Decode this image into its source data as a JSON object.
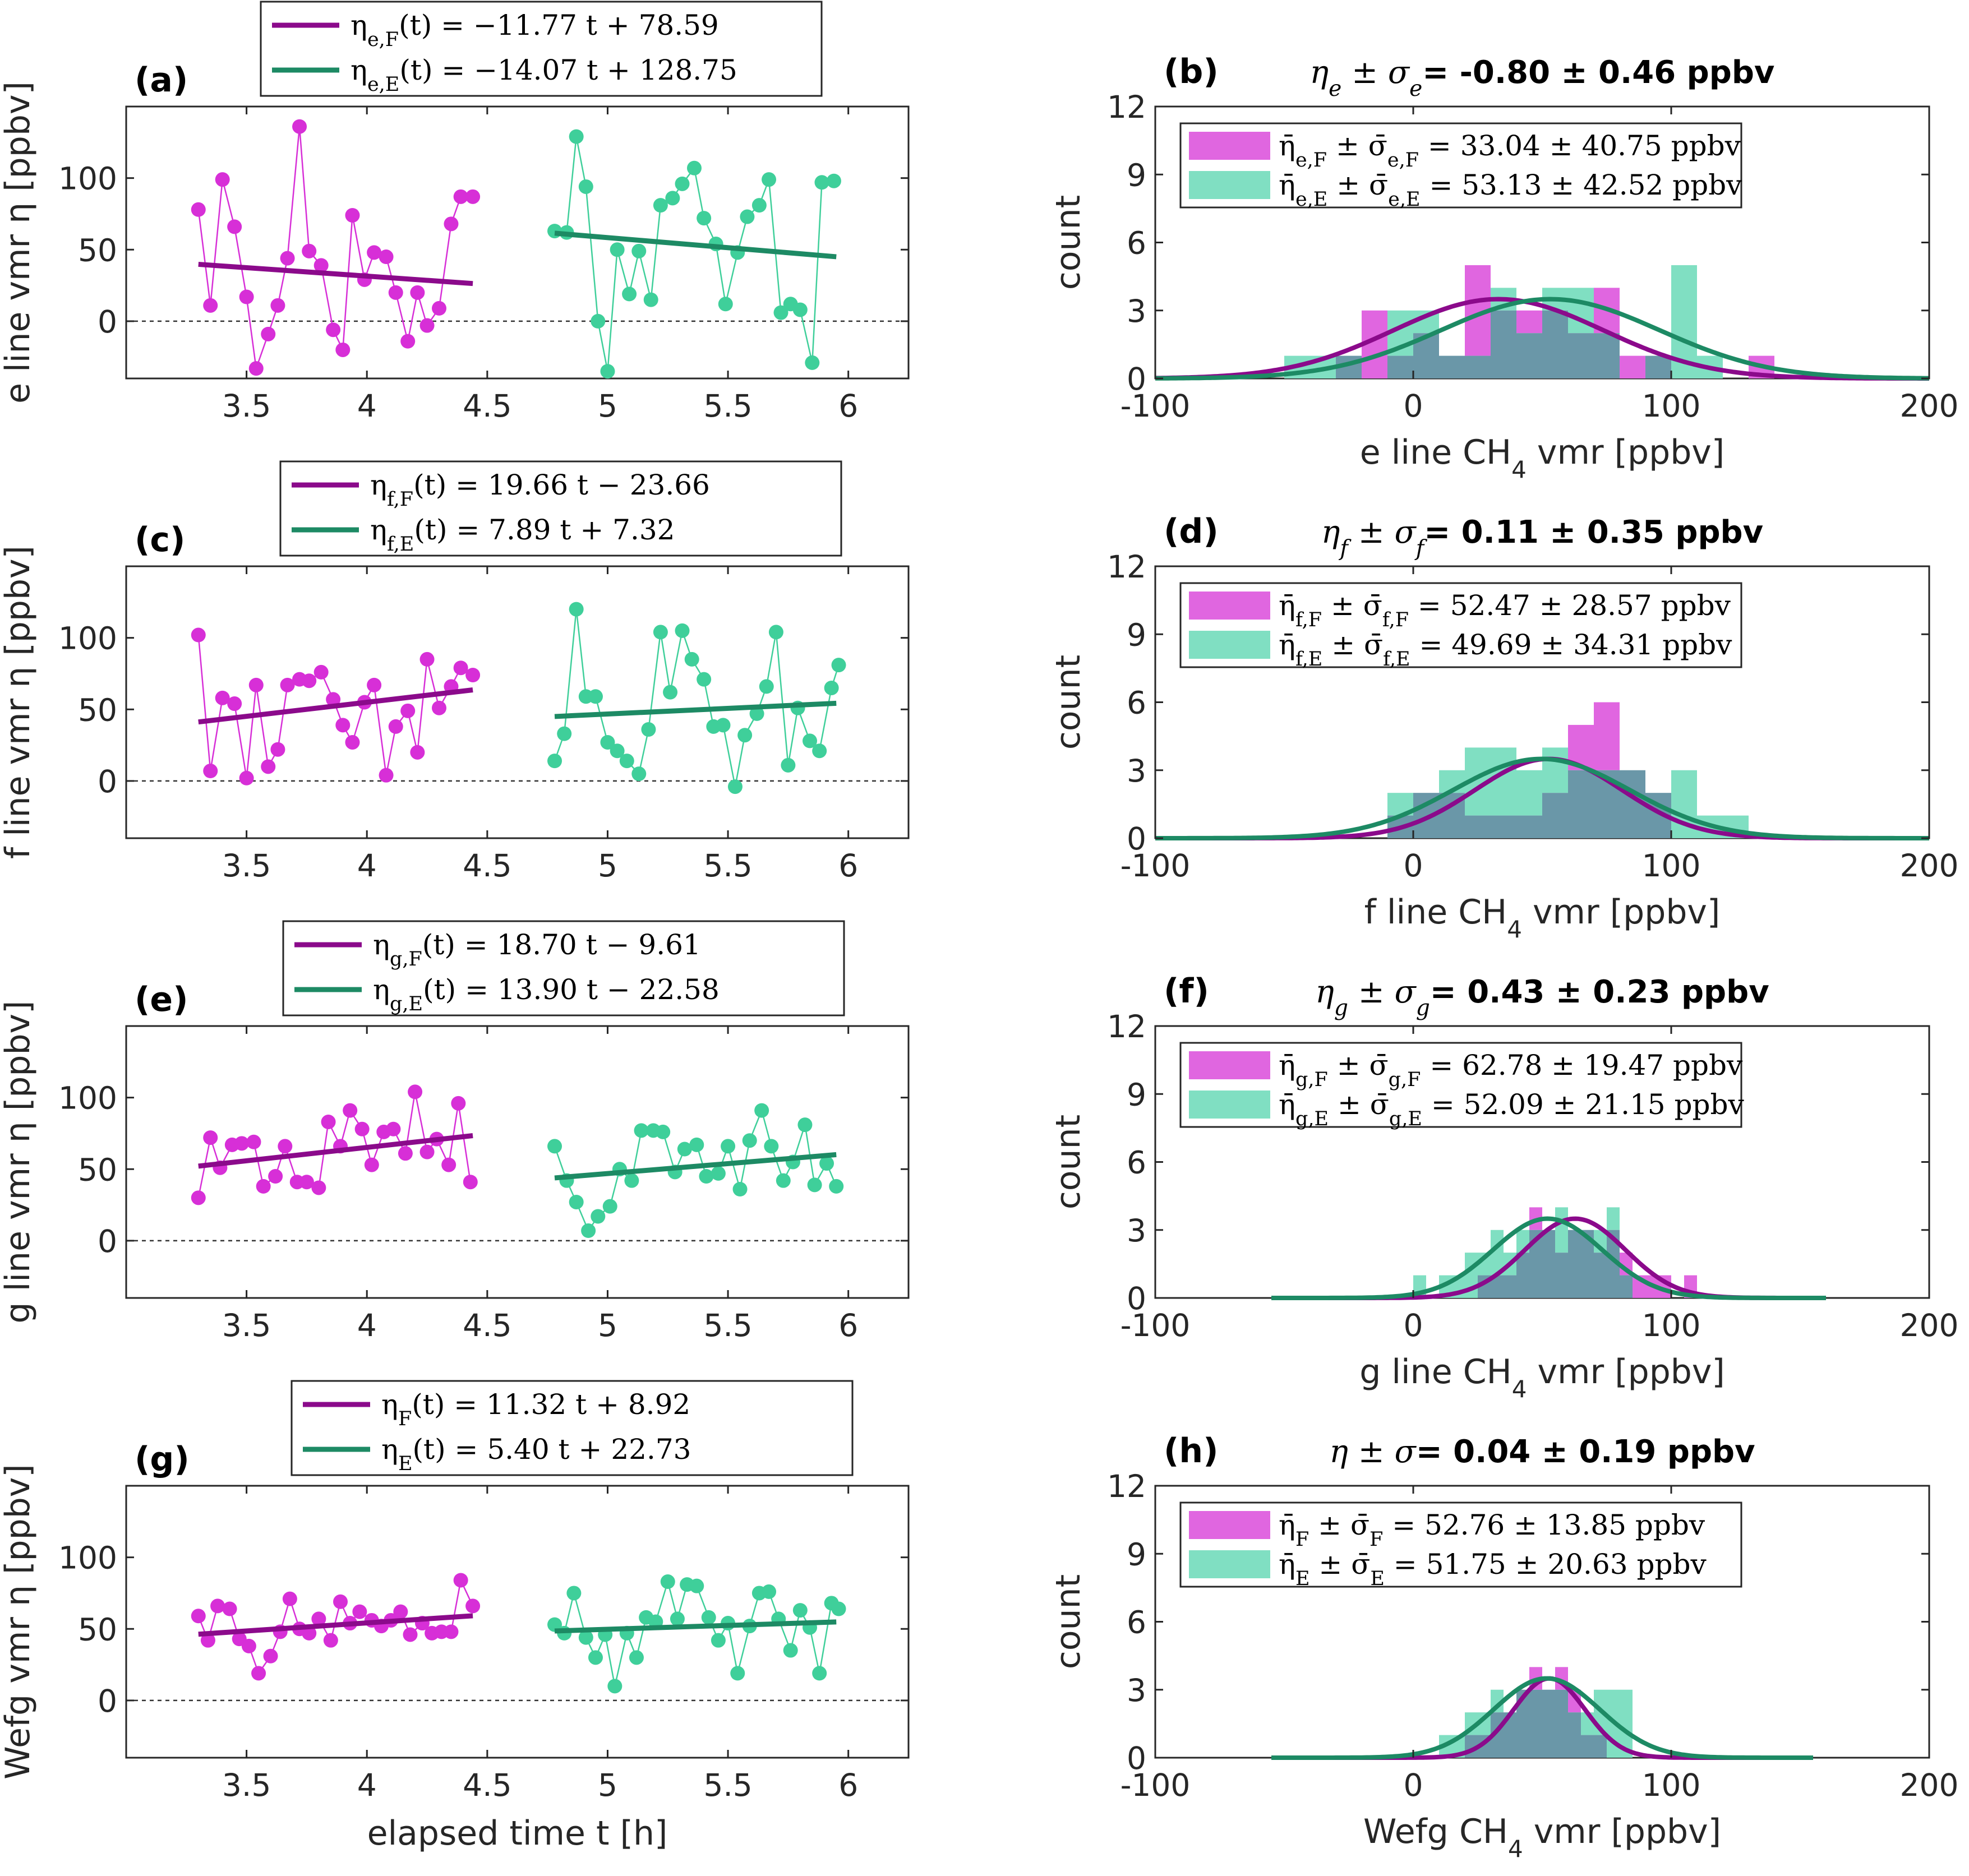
{
  "colors": {
    "flight_points": "#d72fd7",
    "flight_fit": "#8b0a8b",
    "earth_points": "#3fcf9a",
    "earth_fit": "#1d8a64",
    "flight_bar": "#e066e0",
    "earth_bar": "#80dfc2",
    "overlap_bar": "#6a97a8"
  },
  "chart_data": [
    {
      "type": "scatter",
      "panel": "(a)",
      "ylabel": "e line vmr η [ppbv]",
      "xlabel": "",
      "xlim": [
        3.0,
        6.25
      ],
      "ylim": [
        -40,
        150
      ],
      "xticks": [
        3.5,
        4,
        4.5,
        5,
        5.5,
        6
      ],
      "yticks": [
        0,
        50,
        100
      ],
      "legend": [
        "η_e,F(t) = −11.77 t + 78.59",
        "η_e,E(t) = −14.07 t + 128.75"
      ],
      "series": [
        {
          "name": "F",
          "x": [
            3.3,
            3.35,
            3.4,
            3.45,
            3.5,
            3.54,
            3.59,
            3.63,
            3.67,
            3.72,
            3.76,
            3.81,
            3.86,
            3.9,
            3.94,
            3.99,
            4.03,
            4.08,
            4.12,
            4.17,
            4.21,
            4.25,
            4.3,
            4.35,
            4.39,
            4.44
          ],
          "y": [
            78,
            11,
            99,
            66,
            17,
            -33,
            -9,
            11,
            44,
            136,
            49,
            39,
            -6,
            -20,
            74,
            29,
            48,
            45,
            20,
            -14,
            20,
            -3,
            9,
            68,
            87,
            87
          ],
          "fit": {
            "slope": -11.77,
            "intercept": 78.59,
            "x": [
              3.3,
              4.44
            ]
          }
        },
        {
          "name": "E",
          "x": [
            4.78,
            4.83,
            4.87,
            4.91,
            4.96,
            5.0,
            5.04,
            5.09,
            5.13,
            5.18,
            5.22,
            5.27,
            5.31,
            5.36,
            5.4,
            5.45,
            5.49,
            5.54,
            5.58,
            5.63,
            5.67,
            5.72,
            5.76,
            5.8,
            5.85,
            5.89,
            5.94
          ],
          "y": [
            63,
            62,
            129,
            94,
            0,
            -35,
            50,
            19,
            49,
            15,
            81,
            86,
            96,
            107,
            72,
            54,
            12,
            48,
            73,
            81,
            99,
            6,
            12,
            8,
            -29,
            97,
            98
          ],
          "fit": {
            "slope": -14.07,
            "intercept": 128.75,
            "x": [
              4.78,
              5.95
            ]
          }
        }
      ]
    },
    {
      "type": "scatter",
      "panel": "(c)",
      "ylabel": "f line vmr η [ppbv]",
      "xlabel": "",
      "xlim": [
        3.0,
        6.25
      ],
      "ylim": [
        -40,
        150
      ],
      "xticks": [
        3.5,
        4,
        4.5,
        5,
        5.5,
        6
      ],
      "yticks": [
        0,
        50,
        100
      ],
      "legend": [
        "η_f,F(t) = 19.66 t − 23.66",
        "η_f,E(t) = 7.89 t + 7.32"
      ],
      "series": [
        {
          "name": "F",
          "x": [
            3.3,
            3.35,
            3.4,
            3.45,
            3.5,
            3.54,
            3.59,
            3.63,
            3.67,
            3.72,
            3.76,
            3.81,
            3.86,
            3.9,
            3.94,
            3.99,
            4.03,
            4.08,
            4.12,
            4.17,
            4.21,
            4.25,
            4.3,
            4.35,
            4.39,
            4.44
          ],
          "y": [
            102,
            7,
            58,
            54,
            2,
            67,
            10,
            22,
            67,
            71,
            70,
            76,
            57,
            39,
            27,
            55,
            67,
            4,
            38,
            49,
            20,
            85,
            51,
            66,
            79,
            74
          ],
          "fit": {
            "slope": 19.66,
            "intercept": -23.66,
            "x": [
              3.3,
              4.44
            ]
          }
        },
        {
          "name": "E",
          "x": [
            4.78,
            4.82,
            4.87,
            4.91,
            4.95,
            5.0,
            5.04,
            5.08,
            5.13,
            5.17,
            5.22,
            5.26,
            5.31,
            5.35,
            5.4,
            5.44,
            5.48,
            5.53,
            5.57,
            5.62,
            5.66,
            5.7,
            5.75,
            5.79,
            5.84,
            5.88,
            5.93,
            5.96
          ],
          "y": [
            14,
            33,
            120,
            59,
            59,
            27,
            21,
            14,
            5,
            36,
            104,
            62,
            105,
            85,
            71,
            38,
            39,
            -4,
            32,
            47,
            66,
            104,
            11,
            51,
            28,
            21,
            65,
            81
          ],
          "fit": {
            "slope": 7.89,
            "intercept": 7.32,
            "x": [
              4.78,
              5.95
            ]
          }
        }
      ]
    },
    {
      "type": "scatter",
      "panel": "(e)",
      "ylabel": "g line vmr η [ppbv]",
      "xlabel": "",
      "xlim": [
        3.0,
        6.25
      ],
      "ylim": [
        -40,
        150
      ],
      "xticks": [
        3.5,
        4,
        4.5,
        5,
        5.5,
        6
      ],
      "yticks": [
        0,
        50,
        100
      ],
      "legend": [
        "η_g,F(t) = 18.70 t − 9.61",
        "η_g,E(t) = 13.90 t − 22.58"
      ],
      "series": [
        {
          "name": "F",
          "x": [
            3.3,
            3.35,
            3.39,
            3.44,
            3.48,
            3.53,
            3.57,
            3.62,
            3.66,
            3.71,
            3.75,
            3.8,
            3.84,
            3.89,
            3.93,
            3.98,
            4.02,
            4.07,
            4.11,
            4.16,
            4.2,
            4.25,
            4.29,
            4.34,
            4.38,
            4.43
          ],
          "y": [
            30,
            72,
            51,
            67,
            68,
            69,
            38,
            45,
            66,
            41,
            41,
            37,
            83,
            66,
            91,
            78,
            53,
            76,
            78,
            61,
            104,
            62,
            71,
            53,
            96,
            41
          ],
          "fit": {
            "slope": 18.7,
            "intercept": -9.61,
            "x": [
              3.3,
              4.44
            ]
          }
        },
        {
          "name": "E",
          "x": [
            4.78,
            4.83,
            4.87,
            4.92,
            4.96,
            5.01,
            5.05,
            5.1,
            5.14,
            5.19,
            5.23,
            5.28,
            5.32,
            5.37,
            5.41,
            5.46,
            5.5,
            5.55,
            5.59,
            5.64,
            5.68,
            5.73,
            5.77,
            5.82,
            5.86,
            5.91,
            5.95
          ],
          "y": [
            66,
            42,
            27,
            7,
            17,
            24,
            50,
            42,
            77,
            77,
            76,
            48,
            64,
            67,
            45,
            47,
            66,
            36,
            70,
            91,
            66,
            42,
            55,
            81,
            39,
            54,
            38
          ],
          "fit": {
            "slope": 13.9,
            "intercept": -22.58,
            "x": [
              4.78,
              5.95
            ]
          }
        }
      ]
    },
    {
      "type": "scatter",
      "panel": "(g)",
      "ylabel": "Wefg   vmr η [ppbv]",
      "xlabel": "elapsed time t [h]",
      "xlim": [
        3.0,
        6.25
      ],
      "ylim": [
        -40,
        150
      ],
      "xticks": [
        3.5,
        4,
        4.5,
        5,
        5.5,
        6
      ],
      "yticks": [
        0,
        50,
        100
      ],
      "legend": [
        "η_F(t) = 11.32 t + 8.92",
        "η_E(t) = 5.40 t + 22.73"
      ],
      "series": [
        {
          "name": "F",
          "x": [
            3.3,
            3.34,
            3.38,
            3.43,
            3.47,
            3.51,
            3.55,
            3.6,
            3.64,
            3.68,
            3.72,
            3.76,
            3.8,
            3.85,
            3.89,
            3.93,
            3.97,
            4.02,
            4.06,
            4.1,
            4.14,
            4.18,
            4.23,
            4.27,
            4.31,
            4.35,
            4.39,
            4.44
          ],
          "y": [
            59,
            42,
            66,
            64,
            43,
            38,
            19,
            31,
            48,
            71,
            50,
            47,
            57,
            42,
            69,
            54,
            62,
            56,
            52,
            56,
            62,
            46,
            54,
            47,
            48,
            48,
            84,
            66
          ],
          "fit": {
            "slope": 11.32,
            "intercept": 8.92,
            "x": [
              3.3,
              4.44
            ]
          }
        },
        {
          "name": "E",
          "x": [
            4.78,
            4.82,
            4.86,
            4.91,
            4.95,
            4.99,
            5.03,
            5.08,
            5.12,
            5.16,
            5.2,
            5.25,
            5.29,
            5.33,
            5.37,
            5.42,
            5.46,
            5.5,
            5.54,
            5.59,
            5.63,
            5.67,
            5.71,
            5.76,
            5.8,
            5.84,
            5.88,
            5.93,
            5.96
          ],
          "y": [
            53,
            47,
            75,
            44,
            30,
            46,
            10,
            47,
            30,
            58,
            55,
            83,
            57,
            81,
            80,
            58,
            42,
            54,
            19,
            52,
            75,
            76,
            57,
            35,
            63,
            51,
            19,
            68,
            64
          ],
          "fit": {
            "slope": 5.4,
            "intercept": 22.73,
            "x": [
              4.78,
              5.95
            ]
          }
        }
      ]
    },
    {
      "type": "bar",
      "panel": "(b)",
      "title_symbol": "η_e ± σ_e",
      "title_value": " = -0.80 ± 0.46 ppbv",
      "xlabel": "e line CH4 vmr [ppbv]",
      "ylabel": "count",
      "xlim": [
        -100,
        200
      ],
      "ylim": [
        0,
        12
      ],
      "xticks": [
        -100,
        0,
        100,
        200
      ],
      "yticks": [
        0,
        3,
        6,
        9,
        12
      ],
      "bin_edges": [
        -50,
        -40,
        -30,
        -20,
        -10,
        0,
        10,
        20,
        30,
        40,
        50,
        60,
        70,
        80,
        90,
        100,
        110,
        120,
        130,
        140
      ],
      "series": [
        {
          "name": "η̄_e,F ± σ̄_e,F = 33.04 ± 40.75 ppbv",
          "counts": [
            0,
            0,
            1,
            3,
            1,
            2,
            1,
            5,
            3,
            3,
            3,
            2,
            4,
            1,
            1,
            0,
            0,
            0,
            1
          ],
          "gauss": {
            "mean": 33.04,
            "std": 40.75,
            "peak": 3.5,
            "x_range": [
              -100,
              200
            ]
          }
        },
        {
          "name": "η̄_e,E ± σ̄_e,E = 53.13 ± 42.52 ppbv",
          "counts": [
            1,
            1,
            1,
            0,
            3,
            3,
            1,
            1,
            4,
            2,
            4,
            4,
            2,
            0,
            1,
            5,
            1,
            0,
            0
          ],
          "gauss": {
            "mean": 53.13,
            "std": 42.52,
            "peak": 3.5,
            "x_range": [
              -100,
              200
            ]
          }
        }
      ]
    },
    {
      "type": "bar",
      "panel": "(d)",
      "title_symbol": "η_f ± σ_f",
      "title_value": " = 0.11 ± 0.35 ppbv",
      "xlabel": "f line CH4 vmr [ppbv]",
      "ylabel": "count",
      "xlim": [
        -100,
        200
      ],
      "ylim": [
        0,
        12
      ],
      "xticks": [
        -100,
        0,
        100,
        200
      ],
      "yticks": [
        0,
        3,
        6,
        9,
        12
      ],
      "bin_edges": [
        -10,
        0,
        10,
        20,
        30,
        40,
        50,
        60,
        70,
        80,
        90,
        100,
        110,
        120,
        130
      ],
      "series": [
        {
          "name": "η̄_f,F ± σ̄_f,F = 52.47 ± 28.57 ppbv",
          "counts": [
            1,
            2,
            2,
            1,
            1,
            1,
            2,
            5,
            6,
            3,
            2,
            0,
            0,
            0
          ],
          "gauss": {
            "mean": 52.47,
            "std": 28.57,
            "peak": 3.5,
            "x_range": [
              -100,
              200
            ]
          }
        },
        {
          "name": "η̄_f,E ± σ̄_f,E = 49.69 ± 34.31 ppbv",
          "counts": [
            2,
            2,
            3,
            4,
            4,
            3,
            4,
            3,
            3,
            3,
            2,
            3,
            1,
            1
          ],
          "gauss": {
            "mean": 49.69,
            "std": 34.31,
            "peak": 3.5,
            "x_range": [
              -100,
              200
            ]
          }
        }
      ]
    },
    {
      "type": "bar",
      "panel": "(f)",
      "title_symbol": "η_g ± σ_g",
      "title_value": " = 0.43 ± 0.23 ppbv",
      "xlabel": "g line CH4 vmr [ppbv]",
      "ylabel": "count",
      "xlim": [
        -100,
        200
      ],
      "ylim": [
        0,
        12
      ],
      "xticks": [
        -100,
        0,
        100,
        200
      ],
      "yticks": [
        0,
        3,
        6,
        9,
        12
      ],
      "bin_edges": [
        0,
        5,
        10,
        15,
        20,
        25,
        30,
        35,
        40,
        45,
        50,
        55,
        60,
        65,
        70,
        75,
        80,
        85,
        90,
        95,
        100,
        105,
        110
      ],
      "series": [
        {
          "name": "η̄_g,F ± σ̄_g,F = 62.78 ± 19.47 ppbv",
          "counts": [
            0,
            0,
            0,
            0,
            0,
            1,
            1,
            1,
            2,
            4,
            3,
            2,
            3,
            3,
            2,
            3,
            2,
            1,
            1,
            1,
            0,
            1
          ],
          "gauss": {
            "mean": 62.78,
            "std": 19.47,
            "peak": 3.5,
            "x_range": [
              -55,
              160
            ]
          }
        },
        {
          "name": "η̄_g,E ± σ̄_g,E = 52.09 ± 21.15 ppbv",
          "counts": [
            1,
            0,
            1,
            1,
            2,
            2,
            3,
            2,
            3,
            3,
            3,
            4,
            3,
            3,
            3,
            4,
            1,
            0,
            0,
            0,
            0,
            0
          ],
          "gauss": {
            "mean": 52.09,
            "std": 21.15,
            "peak": 3.5,
            "x_range": [
              -55,
              160
            ]
          }
        }
      ]
    },
    {
      "type": "bar",
      "panel": "(h)",
      "title_symbol": "η ± σ",
      "title_value": " = 0.04 ± 0.19 ppbv",
      "xlabel": "Wefg   CH4 vmr [ppbv]",
      "ylabel": "count",
      "xlim": [
        -100,
        200
      ],
      "ylim": [
        0,
        12
      ],
      "xticks": [
        -100,
        0,
        100,
        200
      ],
      "yticks": [
        0,
        3,
        6,
        9,
        12
      ],
      "bin_edges": [
        10,
        15,
        20,
        25,
        30,
        35,
        40,
        45,
        50,
        55,
        60,
        65,
        70,
        75,
        80,
        85
      ],
      "series": [
        {
          "name": "η̄_F ± σ̄_F = 52.76 ± 13.85 ppbv",
          "counts": [
            0,
            0,
            1,
            1,
            2,
            2,
            3,
            4,
            3,
            4,
            3,
            1,
            1,
            0,
            0
          ],
          "gauss": {
            "mean": 52.76,
            "std": 13.85,
            "peak": 3.5,
            "x_range": [
              -55,
              155
            ]
          }
        },
        {
          "name": "η̄_E ± σ̄_E = 51.75 ± 20.63 ppbv",
          "counts": [
            1,
            1,
            2,
            2,
            3,
            2,
            3,
            3,
            3,
            3,
            2,
            2,
            3,
            3,
            3
          ],
          "gauss": {
            "mean": 51.75,
            "std": 20.63,
            "peak": 3.5,
            "x_range": [
              -55,
              155
            ]
          }
        }
      ]
    }
  ]
}
